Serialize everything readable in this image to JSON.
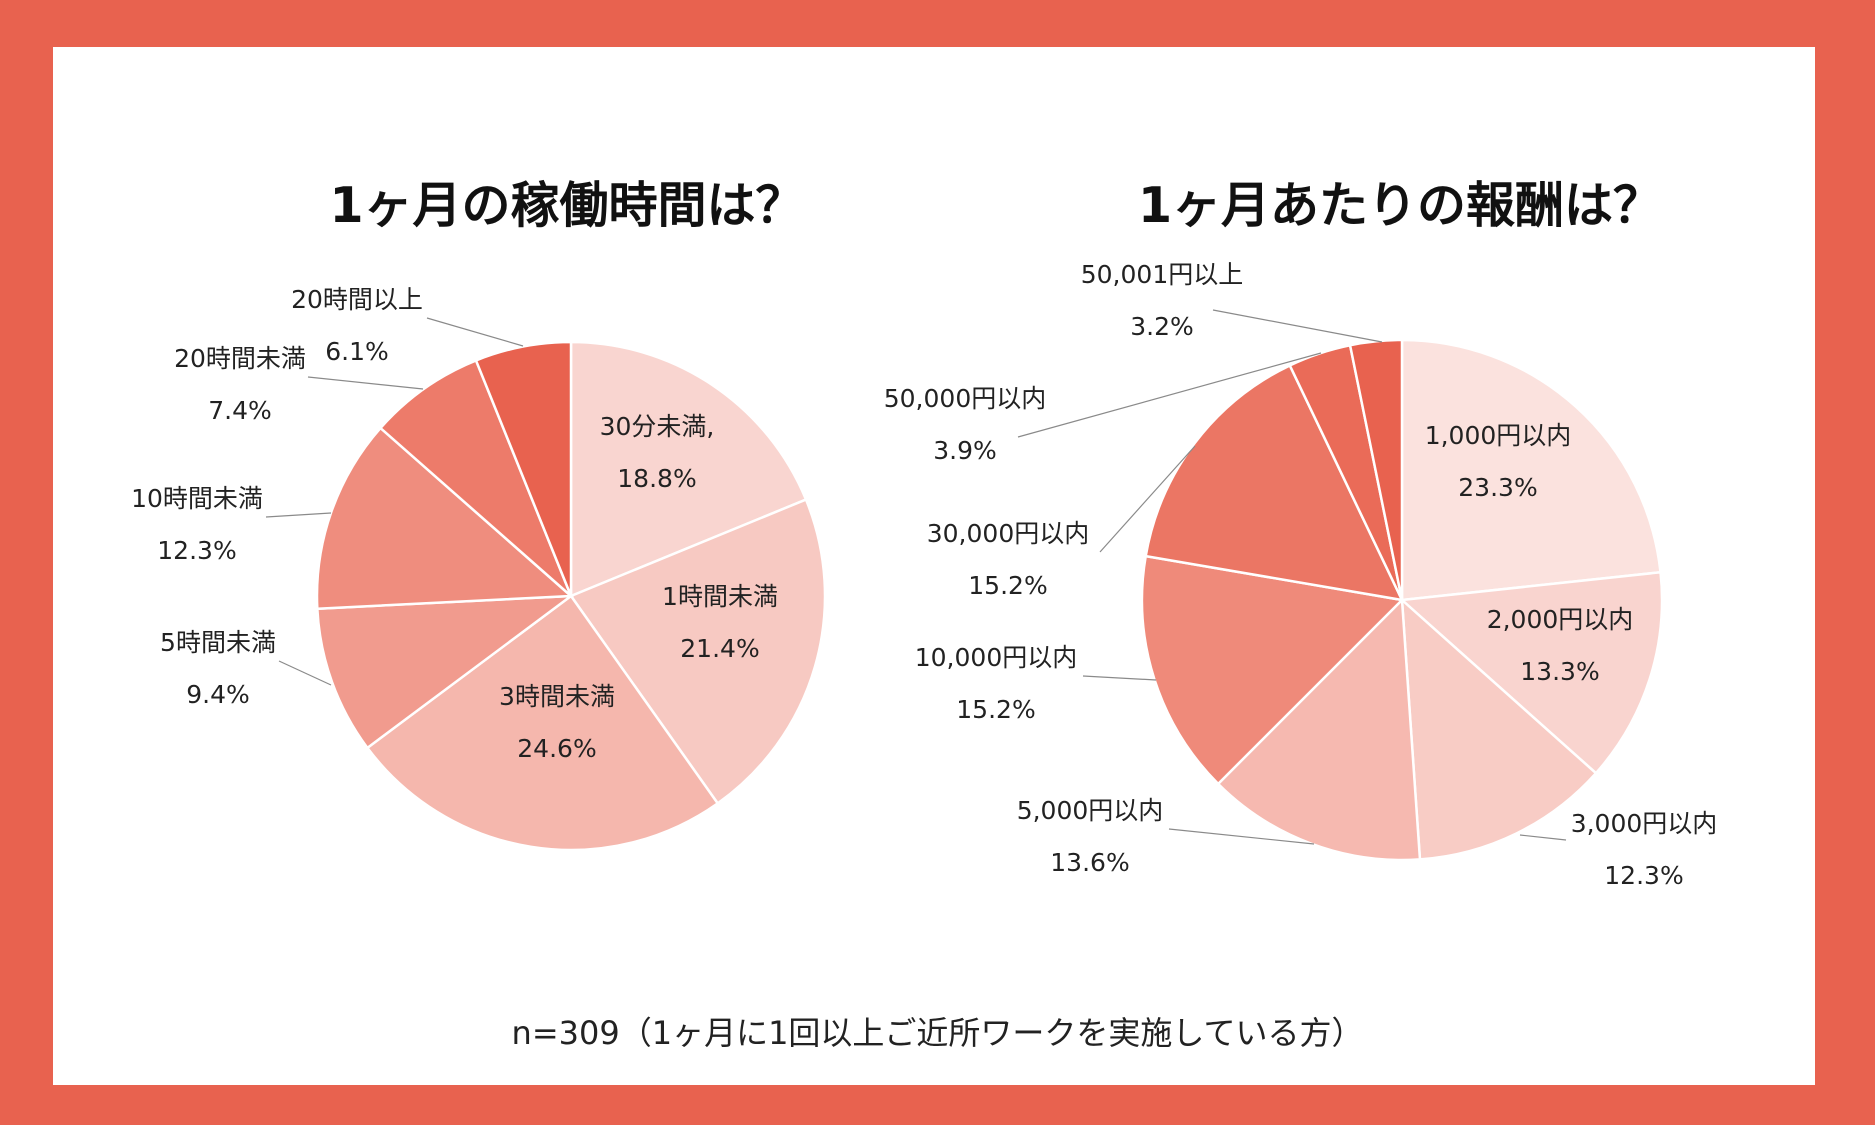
{
  "chart_data": [
    {
      "type": "pie",
      "title": "1ヶ月の稼働時間は？",
      "start": "12 o'clock, clockwise",
      "categories": [
        "30分未満,",
        "1時間未満",
        "3時間未満",
        "5時間未満",
        "10時間未満",
        "20時間未満",
        "20時間以上"
      ],
      "values": [
        18.8,
        21.4,
        24.6,
        9.4,
        12.3,
        7.4,
        6.1
      ],
      "value_labels": [
        "18.8%",
        "21.4%",
        "24.6%",
        "9.4%",
        "12.3%",
        "7.4%",
        "6.1%"
      ],
      "colors": [
        "#F9D5D0",
        "#F7C9C2",
        "#F5B7AD",
        "#F19B8E",
        "#EF8D7E",
        "#ED7B6A",
        "#E8624F"
      ]
    },
    {
      "type": "pie",
      "title": "1ヶ月あたりの報酬は？",
      "start": "12 o'clock, clockwise",
      "categories": [
        "1,000円以内",
        "2,000円以内",
        "3,000円以内",
        "5,000円以内",
        "10,000円以内",
        "30,000円以内",
        "50,000円以内",
        "50,001円以上"
      ],
      "values": [
        23.3,
        13.3,
        12.3,
        13.6,
        15.2,
        15.2,
        3.9,
        3.2
      ],
      "value_labels": [
        "23.3%",
        "13.3%",
        "12.3%",
        "13.6%",
        "15.2%",
        "15.2%",
        "3.9%",
        "3.2%"
      ],
      "colors": [
        "#FBE2DE",
        "#F9D4CF",
        "#F8CCC5",
        "#F6B9B0",
        "#EF8A7A",
        "#EB7664",
        "#EA6B58",
        "#E8624F"
      ]
    }
  ],
  "footnote": "n=309（1ヶ月に1回以上ご近所ワークを実施している方）"
}
